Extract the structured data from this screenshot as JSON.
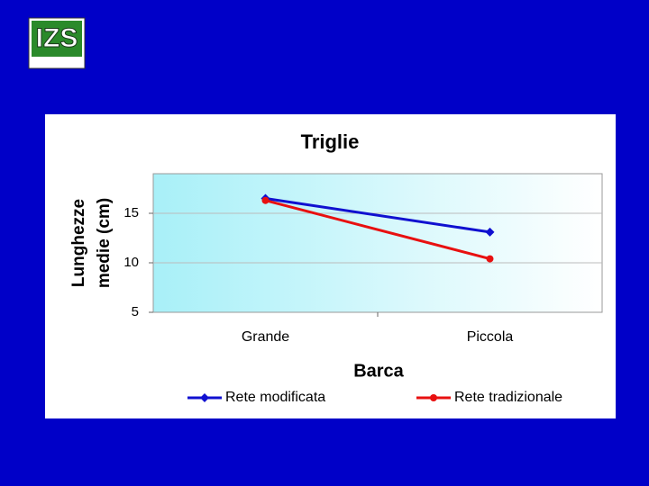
{
  "logo": "IZS",
  "chart_data": {
    "type": "line",
    "title": "Triglie",
    "y_label": [
      "Lunghezze",
      "medie (cm)"
    ],
    "x_label": "Barca",
    "categories": [
      "Grande",
      "Piccola"
    ],
    "series": [
      {
        "name": "Rete modificata",
        "color": "#1010d0",
        "marker": "diamond",
        "values": [
          16.5,
          13.1
        ]
      },
      {
        "name": "Rete tradizionale",
        "color": "#e81010",
        "marker": "circle",
        "values": [
          16.3,
          10.4
        ]
      }
    ],
    "ylim": [
      5,
      19
    ],
    "yticks": [
      5,
      10,
      15
    ],
    "grid": true,
    "legend": "bottom"
  }
}
